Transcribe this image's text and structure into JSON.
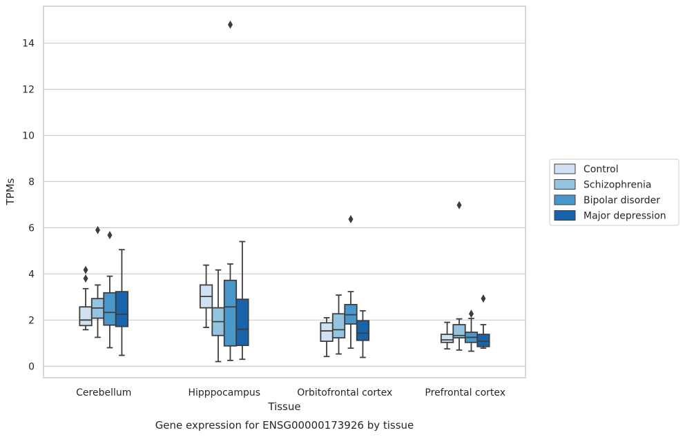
{
  "chart_data": {
    "type": "box",
    "title": "",
    "caption": "Gene expression for ENSG00000173926 by tissue",
    "xlabel": "Tissue",
    "ylabel": "TPMs",
    "ylim": [
      -0.5,
      15.6
    ],
    "yticks": [
      0,
      2,
      4,
      6,
      8,
      10,
      12,
      14
    ],
    "grid": "horizontal",
    "legend_position": "right",
    "categories": [
      "Cerebellum",
      "Hipppocampus",
      "Orbitofrontal cortex",
      "Prefrontal cortex"
    ],
    "series": [
      {
        "name": "Control",
        "color": "#d0e1f2",
        "boxes": [
          {
            "whisker_low": 1.58,
            "q1": 1.76,
            "median": 2.0,
            "q3": 2.57,
            "whisker_high": 3.36,
            "outliers": [
              3.8,
              4.17
            ]
          },
          {
            "whisker_low": 1.68,
            "q1": 2.53,
            "median": 3.02,
            "q3": 3.52,
            "whisker_high": 4.38,
            "outliers": []
          },
          {
            "whisker_low": 0.42,
            "q1": 1.08,
            "median": 1.53,
            "q3": 1.88,
            "whisker_high": 2.1,
            "outliers": []
          },
          {
            "whisker_low": 0.75,
            "q1": 1.03,
            "median": 1.14,
            "q3": 1.38,
            "whisker_high": 1.9,
            "outliers": []
          }
        ]
      },
      {
        "name": "Schizophrenia",
        "color": "#94c4df",
        "boxes": [
          {
            "whisker_low": 1.25,
            "q1": 2.08,
            "median": 2.52,
            "q3": 2.93,
            "whisker_high": 3.52,
            "outliers": [
              5.9
            ]
          },
          {
            "whisker_low": 0.2,
            "q1": 1.33,
            "median": 1.93,
            "q3": 2.53,
            "whisker_high": 4.17,
            "outliers": []
          },
          {
            "whisker_low": 0.53,
            "q1": 1.23,
            "median": 1.58,
            "q3": 2.27,
            "whisker_high": 3.08,
            "outliers": []
          },
          {
            "whisker_low": 0.7,
            "q1": 1.23,
            "median": 1.33,
            "q3": 1.8,
            "whisker_high": 2.05,
            "outliers": [
              6.98
            ]
          }
        ]
      },
      {
        "name": "Bipolar disorder",
        "color": "#4a98c9",
        "boxes": [
          {
            "whisker_low": 0.8,
            "q1": 1.78,
            "median": 2.33,
            "q3": 3.18,
            "whisker_high": 3.9,
            "outliers": [
              5.68
            ]
          },
          {
            "whisker_low": 0.25,
            "q1": 0.88,
            "median": 2.57,
            "q3": 3.72,
            "whisker_high": 4.43,
            "outliers": [
              14.8
            ]
          },
          {
            "whisker_low": 0.78,
            "q1": 1.83,
            "median": 2.23,
            "q3": 2.67,
            "whisker_high": 3.23,
            "outliers": [
              6.37
            ]
          },
          {
            "whisker_low": 0.65,
            "q1": 1.03,
            "median": 1.25,
            "q3": 1.47,
            "whisker_high": 2.07,
            "outliers": [
              2.27
            ]
          }
        ]
      },
      {
        "name": "Major depression",
        "color": "#1764ab",
        "boxes": [
          {
            "whisker_low": 0.47,
            "q1": 1.72,
            "median": 2.25,
            "q3": 3.23,
            "whisker_high": 5.05,
            "outliers": []
          },
          {
            "whisker_low": 0.3,
            "q1": 0.9,
            "median": 1.6,
            "q3": 2.9,
            "whisker_high": 5.4,
            "outliers": []
          },
          {
            "whisker_low": 0.38,
            "q1": 1.12,
            "median": 1.43,
            "q3": 1.97,
            "whisker_high": 2.4,
            "outliers": []
          },
          {
            "whisker_low": 0.78,
            "q1": 0.85,
            "median": 1.08,
            "q3": 1.38,
            "whisker_high": 1.8,
            "outliers": [
              2.93
            ]
          }
        ]
      }
    ]
  }
}
